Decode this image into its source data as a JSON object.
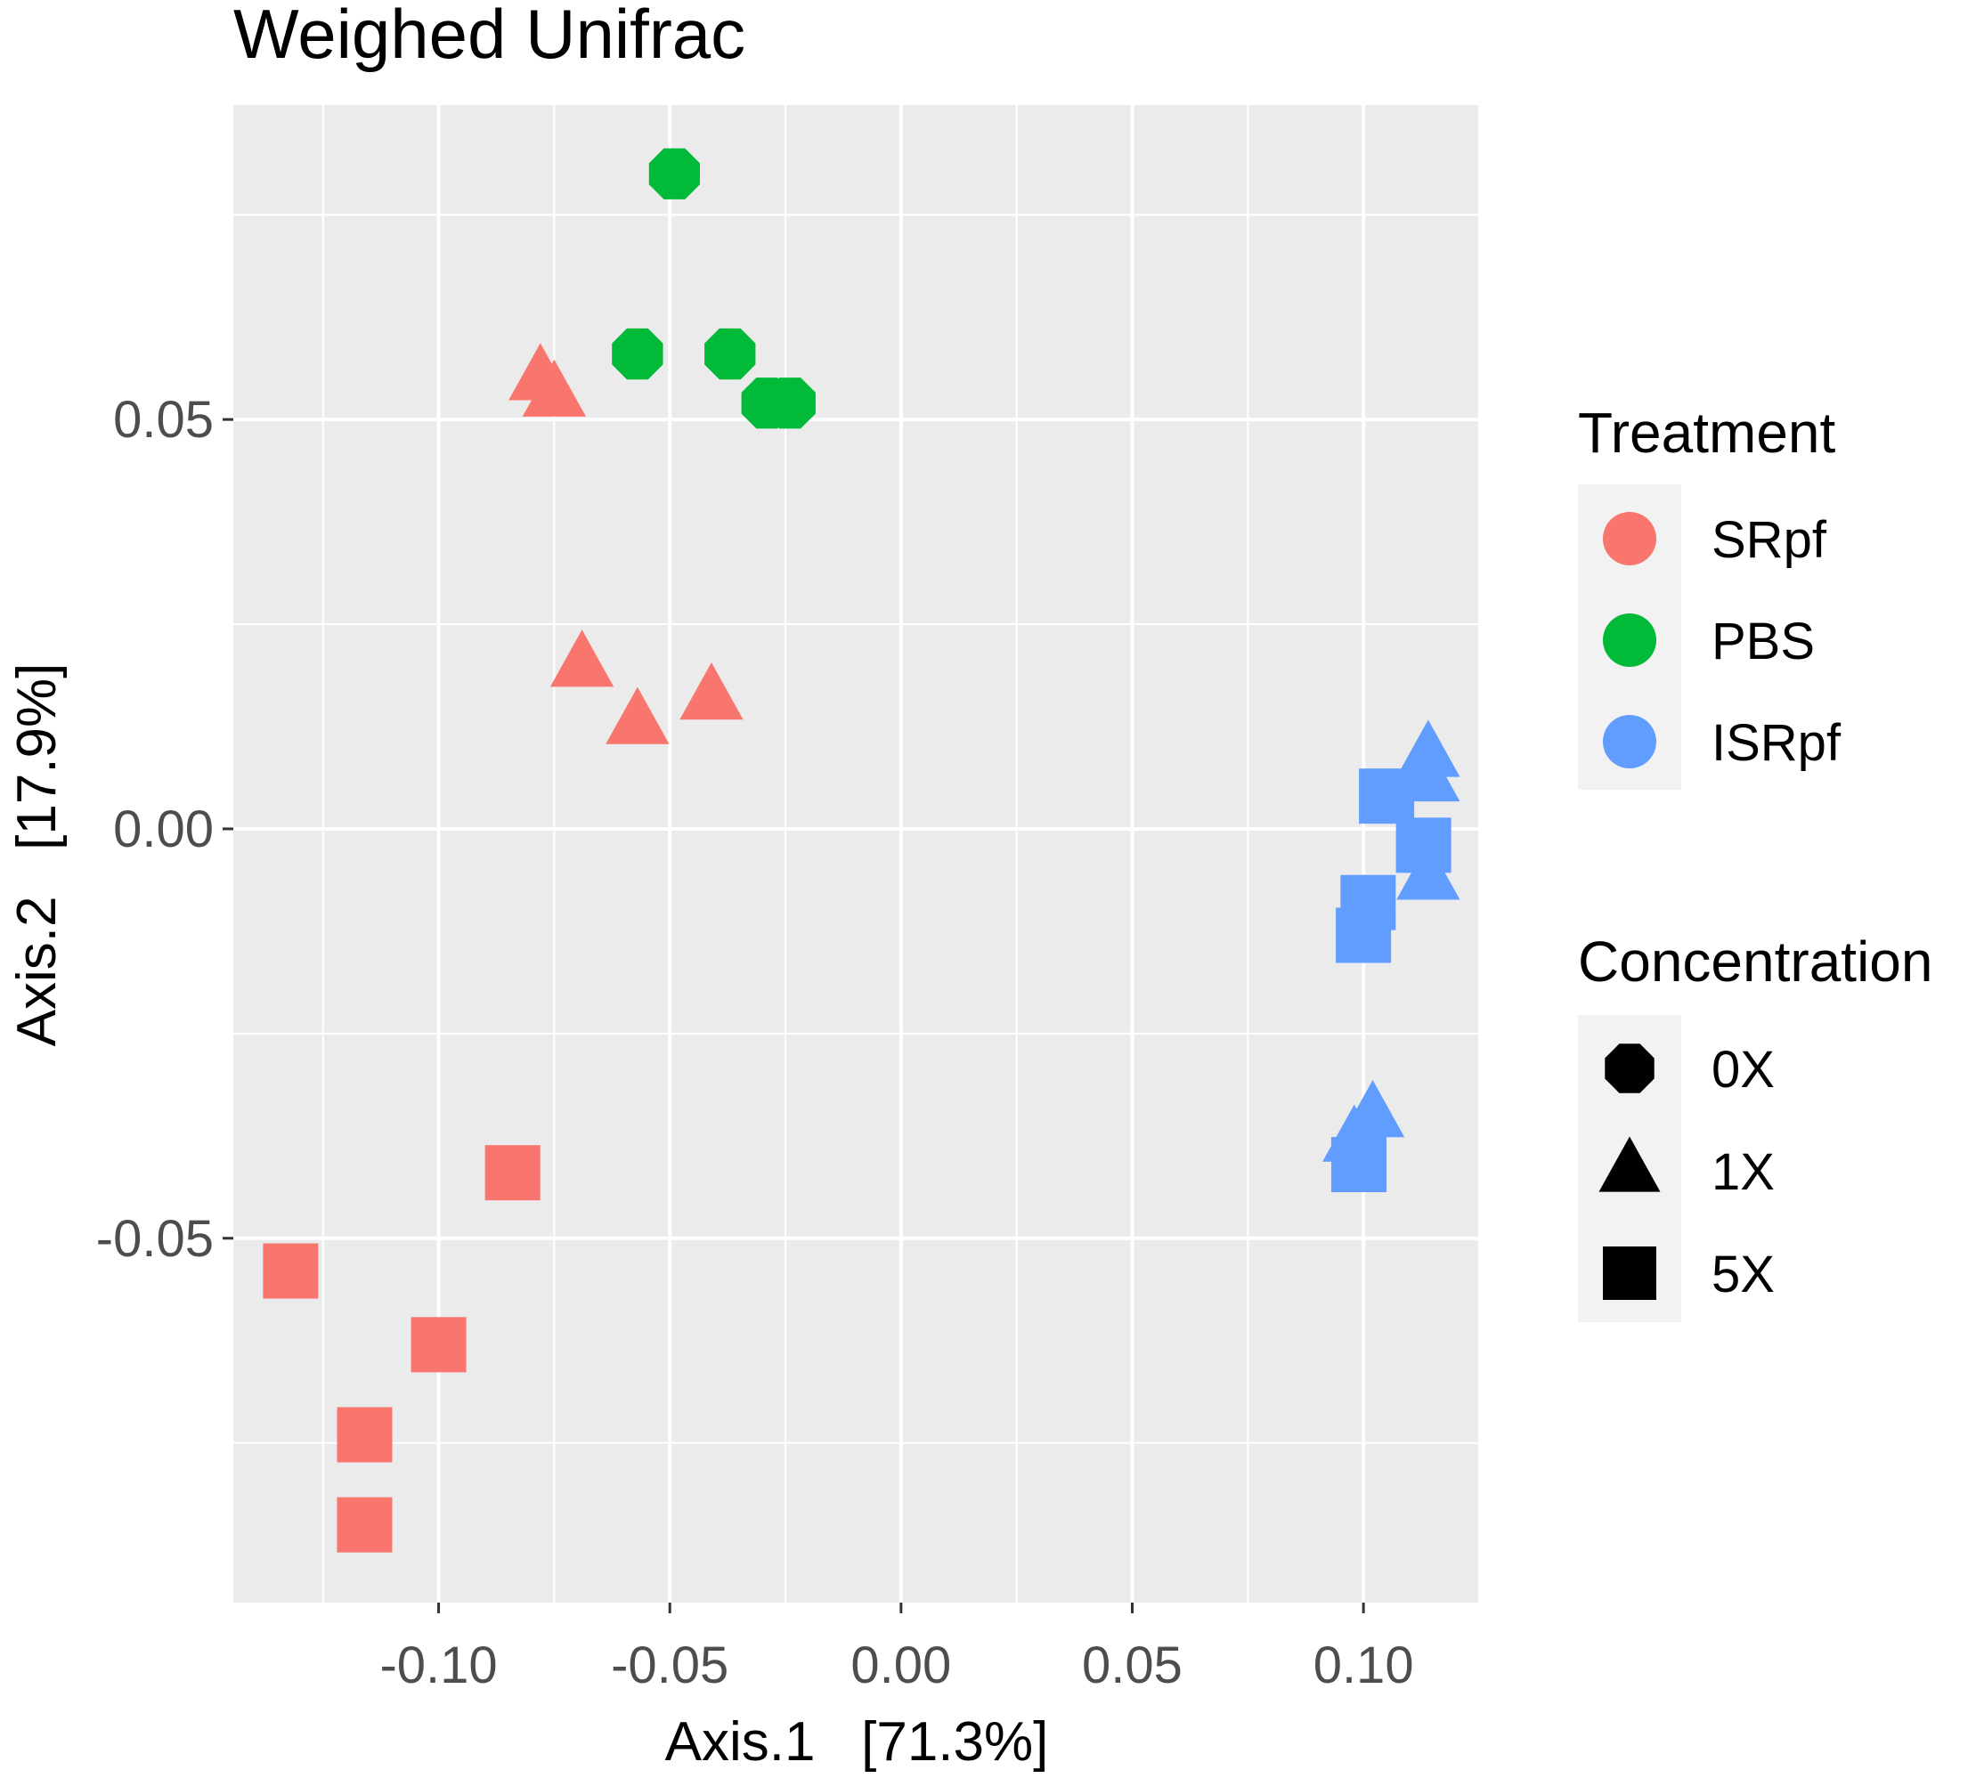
{
  "chart_data": {
    "type": "scatter",
    "title": "Weighed Unifrac",
    "xlabel": "Axis.1   [71.3%]",
    "ylabel": "Axis.2   [17.9%]",
    "xlim": [
      -0.1444,
      0.1252
    ],
    "ylim": [
      -0.0945,
      0.0884
    ],
    "x_ticks": [
      -0.1,
      -0.05,
      0.0,
      0.05,
      0.1
    ],
    "x_tick_labels": [
      "-0.10",
      "-0.05",
      "0.00",
      "0.05",
      "0.10"
    ],
    "y_ticks": [
      -0.05,
      0.0,
      0.05
    ],
    "y_tick_labels": [
      "-0.05",
      "0.00",
      "0.05"
    ],
    "grid": true,
    "legend_position": "right",
    "color_legend": {
      "title": "Treatment",
      "entries": [
        {
          "label": "SRpf",
          "color": "#F8766D"
        },
        {
          "label": "PBS",
          "color": "#00BA38"
        },
        {
          "label": "ISRpf",
          "color": "#619CFF"
        }
      ]
    },
    "shape_legend": {
      "title": "Concentration",
      "entries": [
        {
          "label": "0X",
          "shape": "octagon"
        },
        {
          "label": "1X",
          "shape": "triangle"
        },
        {
          "label": "5X",
          "shape": "square"
        }
      ]
    },
    "series": [
      {
        "name": "PBS",
        "concentration": "0X",
        "color": "#00BA38",
        "shape": "octagon",
        "points": [
          [
            -0.049,
            0.08
          ],
          [
            -0.057,
            0.058
          ],
          [
            -0.037,
            0.058
          ],
          [
            -0.029,
            0.052
          ],
          [
            -0.024,
            0.052
          ]
        ]
      },
      {
        "name": "SRpf",
        "concentration": "1X",
        "color": "#F8766D",
        "shape": "triangle",
        "points": [
          [
            -0.078,
            0.055
          ],
          [
            -0.075,
            0.053
          ],
          [
            -0.069,
            0.02
          ],
          [
            -0.057,
            0.013
          ],
          [
            -0.041,
            0.016
          ]
        ]
      },
      {
        "name": "SRpf",
        "concentration": "5X",
        "color": "#F8766D",
        "shape": "square",
        "points": [
          [
            -0.084,
            -0.042
          ],
          [
            -0.132,
            -0.054
          ],
          [
            -0.1,
            -0.063
          ],
          [
            -0.116,
            -0.074
          ],
          [
            -0.116,
            -0.085
          ]
        ]
      },
      {
        "name": "ISRpf",
        "concentration": "1X",
        "color": "#619CFF",
        "shape": "triangle",
        "points": [
          [
            0.114,
            0.009
          ],
          [
            0.114,
            0.006
          ],
          [
            0.114,
            -0.006
          ],
          [
            0.102,
            -0.035
          ],
          [
            0.098,
            -0.038
          ]
        ]
      },
      {
        "name": "ISRpf",
        "concentration": "5X",
        "color": "#619CFF",
        "shape": "square",
        "points": [
          [
            0.105,
            0.004
          ],
          [
            0.113,
            -0.002
          ],
          [
            0.101,
            -0.009
          ],
          [
            0.1,
            -0.013
          ],
          [
            0.099,
            -0.041
          ]
        ]
      }
    ]
  }
}
